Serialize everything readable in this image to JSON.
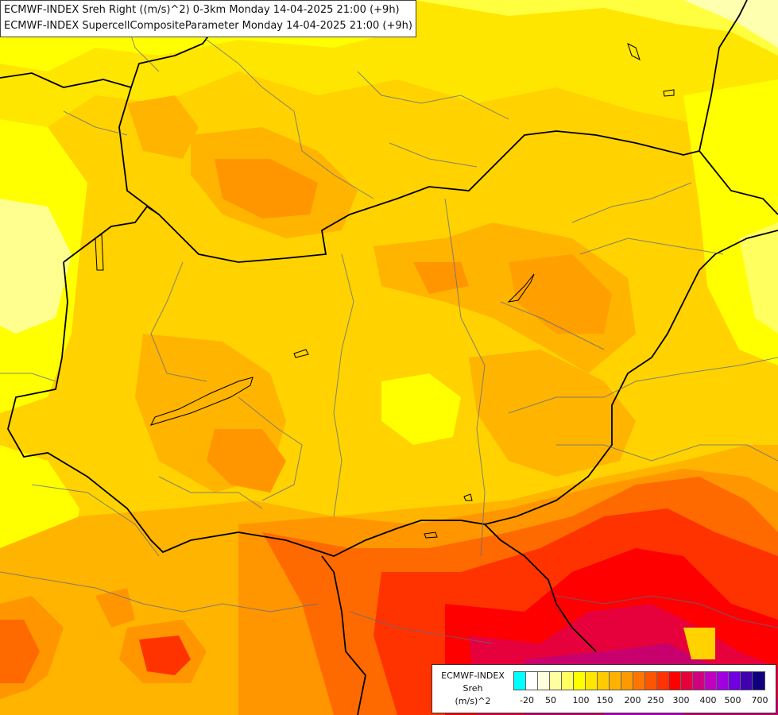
{
  "header": {
    "line1": "ECMWF-INDEX Sreh Right ((m/s)^2) 0-3km Monday 14-04-2025 21:00 (+9h)",
    "line2": "ECMWF-INDEX SupercellCompositeParameter Monday 14-04-2025 21:00 (+9h)"
  },
  "legend": {
    "title_line1": "ECMWF-INDEX",
    "title_line2": "Sreh",
    "title_line3": "(m/s)^2",
    "colors": [
      "#00ffff",
      "#ffffff",
      "#ffffe0",
      "#ffffa0",
      "#ffff60",
      "#ffff00",
      "#ffe600",
      "#ffcc00",
      "#ffb300",
      "#ff9900",
      "#ff7700",
      "#ff5500",
      "#ff3300",
      "#ff0000",
      "#e6003c",
      "#d0007f",
      "#c000c0",
      "#a000e0",
      "#7000e0",
      "#4000b0",
      "#100080"
    ],
    "labels": [
      "-20",
      "50",
      "100",
      "150",
      "200",
      "250",
      "300",
      "400",
      "500",
      "700"
    ]
  },
  "map": {
    "fill_colors": {
      "pale_yellow": "#ffff80",
      "yellow": "#ffff00",
      "light_orange": "#ffd200",
      "orange": "#ffb400",
      "dark_orange": "#ff9600",
      "red_orange": "#ff6a00",
      "red": "#ff2200",
      "crimson": "#e6003c",
      "magenta": "#c8006e",
      "violet": "#b400c8"
    }
  }
}
